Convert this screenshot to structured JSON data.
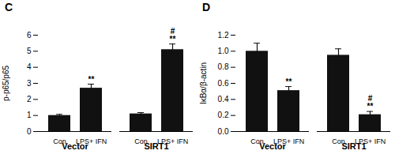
{
  "chart_data": [
    {
      "type": "bar",
      "title": "C",
      "ylabel": "p-p65/p65",
      "categories": [
        "Con",
        "LPS+ IFN",
        "Con",
        "LPS+ IFN"
      ],
      "groups": [
        "Vector",
        "Vector",
        "SIRT1",
        "SIRT1"
      ],
      "values": [
        1.0,
        2.7,
        1.1,
        5.1
      ],
      "errors": [
        0.07,
        0.25,
        0.08,
        0.35
      ],
      "annotations": [
        null,
        "**",
        null,
        "#\n**"
      ],
      "color": "#111111",
      "ylim": [
        0,
        6
      ],
      "yticks": [
        0,
        1,
        2,
        3,
        4,
        5,
        6
      ]
    },
    {
      "type": "bar",
      "title": "D",
      "ylabel": "IκBα/β-actin",
      "categories": [
        "Con",
        "LPS+ IFN",
        "Con",
        "LPS+ IFN"
      ],
      "groups": [
        "Vector",
        "Vector",
        "SIRT1",
        "SIRT1"
      ],
      "values": [
        1.0,
        0.51,
        0.95,
        0.21
      ],
      "errors": [
        0.1,
        0.05,
        0.08,
        0.04
      ],
      "annotations": [
        null,
        "**",
        null,
        "#\n**"
      ],
      "color": "#111111",
      "ylim": [
        0,
        1.2
      ],
      "yticks": [
        {
          "value": 0,
          "label": "0.0"
        },
        0.2,
        0.4,
        0.6,
        0.8,
        {
          "value": 1,
          "label": "1.0"
        },
        1.2
      ]
    }
  ]
}
